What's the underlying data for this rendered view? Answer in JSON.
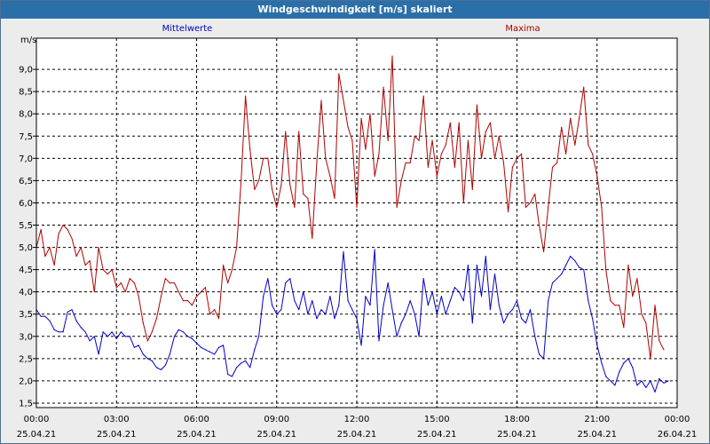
{
  "window": {
    "title": "Windgeschwindigkeit [m/s] skaliert"
  },
  "chart_data": {
    "type": "line",
    "title": "Windgeschwindigkeit [m/s] skaliert",
    "ylabel": "m/s",
    "ylim": [
      1.4,
      9.7
    ],
    "xlim_hours": [
      0,
      24
    ],
    "grid": true,
    "yticks": [
      {
        "value": 1.5,
        "label": "1,5"
      },
      {
        "value": 2.0,
        "label": "2,0"
      },
      {
        "value": 2.5,
        "label": "2,5"
      },
      {
        "value": 3.0,
        "label": "3,0"
      },
      {
        "value": 3.5,
        "label": "3,5"
      },
      {
        "value": 4.0,
        "label": "4,0"
      },
      {
        "value": 4.5,
        "label": "4,5"
      },
      {
        "value": 5.0,
        "label": "5,0"
      },
      {
        "value": 5.5,
        "label": "5,5"
      },
      {
        "value": 6.0,
        "label": "6,0"
      },
      {
        "value": 6.5,
        "label": "6,5"
      },
      {
        "value": 7.0,
        "label": "7,0"
      },
      {
        "value": 7.5,
        "label": "7,5"
      },
      {
        "value": 8.0,
        "label": "8,0"
      },
      {
        "value": 8.5,
        "label": "8,5"
      },
      {
        "value": 9.0,
        "label": "9,0"
      }
    ],
    "xticks": [
      {
        "hour": 0,
        "time": "00:00",
        "date": "25.04.21"
      },
      {
        "hour": 3,
        "time": "03:00",
        "date": "25.04.21"
      },
      {
        "hour": 6,
        "time": "06:00",
        "date": "25.04.21"
      },
      {
        "hour": 9,
        "time": "09:00",
        "date": "25.04.21"
      },
      {
        "hour": 12,
        "time": "12:00",
        "date": "25.04.21"
      },
      {
        "hour": 15,
        "time": "15:00",
        "date": "25.04.21"
      },
      {
        "hour": 18,
        "time": "18:00",
        "date": "25.04.21"
      },
      {
        "hour": 21,
        "time": "21:00",
        "date": "25.04.21"
      },
      {
        "hour": 24,
        "time": "00:00",
        "date": "26.04.21"
      }
    ],
    "series": [
      {
        "name": "Mittelwerte",
        "color": "#0000c8",
        "points": [
          [
            0.0,
            3.6
          ],
          [
            0.17,
            3.45
          ],
          [
            0.33,
            3.45
          ],
          [
            0.5,
            3.35
          ],
          [
            0.67,
            3.15
          ],
          [
            0.83,
            3.1
          ],
          [
            1.0,
            3.1
          ],
          [
            1.17,
            3.55
          ],
          [
            1.33,
            3.6
          ],
          [
            1.5,
            3.35
          ],
          [
            1.67,
            3.2
          ],
          [
            1.83,
            3.1
          ],
          [
            2.0,
            2.9
          ],
          [
            2.17,
            3.0
          ],
          [
            2.33,
            2.6
          ],
          [
            2.5,
            3.1
          ],
          [
            2.67,
            3.0
          ],
          [
            2.83,
            3.1
          ],
          [
            3.0,
            2.95
          ],
          [
            3.17,
            3.1
          ],
          [
            3.33,
            3.0
          ],
          [
            3.5,
            3.0
          ],
          [
            3.67,
            2.75
          ],
          [
            3.83,
            2.8
          ],
          [
            4.0,
            2.6
          ],
          [
            4.17,
            2.5
          ],
          [
            4.33,
            2.45
          ],
          [
            4.5,
            2.3
          ],
          [
            4.67,
            2.25
          ],
          [
            4.83,
            2.35
          ],
          [
            5.0,
            2.6
          ],
          [
            5.17,
            3.0
          ],
          [
            5.33,
            3.15
          ],
          [
            5.5,
            3.1
          ],
          [
            5.67,
            3.0
          ],
          [
            5.83,
            2.95
          ],
          [
            6.0,
            2.85
          ],
          [
            6.17,
            2.75
          ],
          [
            6.33,
            2.7
          ],
          [
            6.5,
            2.65
          ],
          [
            6.67,
            2.6
          ],
          [
            6.83,
            2.75
          ],
          [
            7.0,
            2.8
          ],
          [
            7.17,
            2.15
          ],
          [
            7.33,
            2.1
          ],
          [
            7.5,
            2.3
          ],
          [
            7.67,
            2.4
          ],
          [
            7.83,
            2.45
          ],
          [
            8.0,
            2.3
          ],
          [
            8.17,
            2.7
          ],
          [
            8.33,
            3.0
          ],
          [
            8.5,
            3.9
          ],
          [
            8.67,
            4.3
          ],
          [
            8.83,
            3.7
          ],
          [
            9.0,
            3.5
          ],
          [
            9.17,
            3.6
          ],
          [
            9.33,
            4.2
          ],
          [
            9.5,
            4.3
          ],
          [
            9.67,
            3.8
          ],
          [
            9.83,
            3.6
          ],
          [
            10.0,
            4.0
          ],
          [
            10.17,
            3.5
          ],
          [
            10.33,
            3.8
          ],
          [
            10.5,
            3.4
          ],
          [
            10.67,
            3.6
          ],
          [
            10.83,
            3.5
          ],
          [
            11.0,
            3.9
          ],
          [
            11.17,
            3.4
          ],
          [
            11.33,
            3.7
          ],
          [
            11.5,
            4.9
          ],
          [
            11.67,
            3.8
          ],
          [
            11.83,
            3.6
          ],
          [
            12.0,
            3.4
          ],
          [
            12.17,
            2.8
          ],
          [
            12.33,
            3.9
          ],
          [
            12.5,
            3.7
          ],
          [
            12.67,
            4.95
          ],
          [
            12.83,
            2.9
          ],
          [
            13.0,
            3.7
          ],
          [
            13.17,
            4.2
          ],
          [
            13.33,
            3.6
          ],
          [
            13.5,
            3.0
          ],
          [
            13.67,
            3.3
          ],
          [
            13.83,
            3.5
          ],
          [
            14.0,
            3.8
          ],
          [
            14.17,
            3.5
          ],
          [
            14.33,
            3.0
          ],
          [
            14.5,
            4.3
          ],
          [
            14.67,
            3.7
          ],
          [
            14.83,
            4.0
          ],
          [
            15.0,
            3.5
          ],
          [
            15.17,
            3.9
          ],
          [
            15.33,
            3.5
          ],
          [
            15.5,
            3.8
          ],
          [
            15.67,
            4.1
          ],
          [
            15.83,
            4.0
          ],
          [
            16.0,
            3.8
          ],
          [
            16.17,
            4.6
          ],
          [
            16.33,
            3.3
          ],
          [
            16.5,
            4.6
          ],
          [
            16.67,
            3.9
          ],
          [
            16.83,
            4.8
          ],
          [
            17.0,
            3.6
          ],
          [
            17.17,
            4.4
          ],
          [
            17.33,
            3.7
          ],
          [
            17.5,
            3.3
          ],
          [
            17.67,
            3.5
          ],
          [
            17.83,
            3.6
          ],
          [
            18.0,
            3.8
          ],
          [
            18.17,
            3.4
          ],
          [
            18.33,
            3.3
          ],
          [
            18.5,
            3.6
          ],
          [
            18.67,
            3.0
          ],
          [
            18.83,
            2.6
          ],
          [
            19.0,
            2.5
          ],
          [
            19.17,
            3.8
          ],
          [
            19.33,
            4.2
          ],
          [
            19.5,
            4.3
          ],
          [
            19.67,
            4.4
          ],
          [
            19.83,
            4.6
          ],
          [
            20.0,
            4.8
          ],
          [
            20.17,
            4.7
          ],
          [
            20.33,
            4.55
          ],
          [
            20.5,
            4.5
          ],
          [
            20.67,
            3.8
          ],
          [
            20.83,
            3.4
          ],
          [
            21.0,
            2.8
          ],
          [
            21.17,
            2.4
          ],
          [
            21.33,
            2.1
          ],
          [
            21.5,
            2.0
          ],
          [
            21.67,
            1.9
          ],
          [
            21.83,
            2.2
          ],
          [
            22.0,
            2.4
          ],
          [
            22.17,
            2.5
          ],
          [
            22.33,
            2.3
          ],
          [
            22.5,
            1.9
          ],
          [
            22.67,
            2.0
          ],
          [
            22.83,
            1.85
          ],
          [
            23.0,
            2.0
          ],
          [
            23.17,
            1.75
          ],
          [
            23.33,
            2.05
          ],
          [
            23.5,
            1.95
          ],
          [
            23.67,
            2.0
          ]
        ]
      },
      {
        "name": "Maxima",
        "color": "#b00000",
        "points": [
          [
            0.0,
            5.0
          ],
          [
            0.17,
            5.4
          ],
          [
            0.33,
            4.8
          ],
          [
            0.5,
            5.0
          ],
          [
            0.67,
            4.6
          ],
          [
            0.83,
            5.3
          ],
          [
            1.0,
            5.5
          ],
          [
            1.17,
            5.4
          ],
          [
            1.33,
            5.2
          ],
          [
            1.5,
            4.8
          ],
          [
            1.67,
            5.0
          ],
          [
            1.83,
            4.6
          ],
          [
            2.0,
            4.7
          ],
          [
            2.17,
            4.0
          ],
          [
            2.33,
            5.0
          ],
          [
            2.5,
            4.5
          ],
          [
            2.67,
            4.4
          ],
          [
            2.83,
            4.5
          ],
          [
            3.0,
            4.1
          ],
          [
            3.17,
            4.2
          ],
          [
            3.33,
            4.0
          ],
          [
            3.5,
            4.3
          ],
          [
            3.67,
            4.2
          ],
          [
            3.83,
            3.9
          ],
          [
            4.0,
            3.3
          ],
          [
            4.17,
            2.9
          ],
          [
            4.33,
            3.1
          ],
          [
            4.5,
            3.4
          ],
          [
            4.67,
            3.9
          ],
          [
            4.83,
            4.3
          ],
          [
            5.0,
            4.2
          ],
          [
            5.17,
            4.2
          ],
          [
            5.33,
            4.0
          ],
          [
            5.5,
            3.8
          ],
          [
            5.67,
            3.8
          ],
          [
            5.83,
            3.7
          ],
          [
            6.0,
            3.9
          ],
          [
            6.17,
            4.0
          ],
          [
            6.33,
            4.1
          ],
          [
            6.5,
            3.5
          ],
          [
            6.67,
            3.6
          ],
          [
            6.83,
            3.4
          ],
          [
            7.0,
            4.6
          ],
          [
            7.17,
            4.2
          ],
          [
            7.33,
            4.5
          ],
          [
            7.5,
            5.0
          ],
          [
            7.67,
            6.5
          ],
          [
            7.83,
            8.4
          ],
          [
            8.0,
            7.2
          ],
          [
            8.17,
            6.3
          ],
          [
            8.33,
            6.5
          ],
          [
            8.5,
            7.0
          ],
          [
            8.67,
            7.0
          ],
          [
            8.83,
            6.3
          ],
          [
            9.0,
            5.9
          ],
          [
            9.17,
            6.4
          ],
          [
            9.33,
            7.6
          ],
          [
            9.5,
            6.4
          ],
          [
            9.67,
            5.9
          ],
          [
            9.83,
            7.6
          ],
          [
            10.0,
            6.2
          ],
          [
            10.17,
            6.1
          ],
          [
            10.33,
            5.2
          ],
          [
            10.5,
            6.9
          ],
          [
            10.67,
            8.3
          ],
          [
            10.83,
            7.0
          ],
          [
            11.0,
            6.6
          ],
          [
            11.17,
            6.1
          ],
          [
            11.33,
            8.9
          ],
          [
            11.5,
            8.3
          ],
          [
            11.67,
            7.7
          ],
          [
            11.83,
            7.4
          ],
          [
            12.0,
            5.9
          ],
          [
            12.17,
            7.9
          ],
          [
            12.33,
            7.2
          ],
          [
            12.5,
            8.0
          ],
          [
            12.67,
            6.6
          ],
          [
            12.83,
            7.1
          ],
          [
            13.0,
            8.6
          ],
          [
            13.17,
            7.4
          ],
          [
            13.33,
            9.3
          ],
          [
            13.5,
            5.9
          ],
          [
            13.67,
            6.5
          ],
          [
            13.83,
            6.9
          ],
          [
            14.0,
            6.9
          ],
          [
            14.17,
            7.5
          ],
          [
            14.33,
            7.4
          ],
          [
            14.5,
            8.4
          ],
          [
            14.67,
            6.8
          ],
          [
            14.83,
            7.4
          ],
          [
            15.0,
            6.6
          ],
          [
            15.17,
            7.1
          ],
          [
            15.33,
            7.3
          ],
          [
            15.5,
            7.8
          ],
          [
            15.67,
            6.8
          ],
          [
            15.83,
            7.8
          ],
          [
            16.0,
            6.0
          ],
          [
            16.17,
            7.4
          ],
          [
            16.33,
            6.3
          ],
          [
            16.5,
            8.2
          ],
          [
            16.67,
            7.0
          ],
          [
            16.83,
            7.6
          ],
          [
            17.0,
            7.8
          ],
          [
            17.17,
            7.0
          ],
          [
            17.33,
            7.5
          ],
          [
            17.5,
            6.9
          ],
          [
            17.67,
            5.8
          ],
          [
            17.83,
            6.8
          ],
          [
            18.0,
            7.0
          ],
          [
            18.17,
            7.1
          ],
          [
            18.33,
            5.9
          ],
          [
            18.5,
            6.0
          ],
          [
            18.67,
            6.2
          ],
          [
            18.83,
            5.5
          ],
          [
            19.0,
            4.9
          ],
          [
            19.17,
            5.9
          ],
          [
            19.33,
            6.8
          ],
          [
            19.5,
            6.9
          ],
          [
            19.67,
            7.7
          ],
          [
            19.83,
            7.1
          ],
          [
            20.0,
            7.9
          ],
          [
            20.17,
            7.3
          ],
          [
            20.33,
            7.9
          ],
          [
            20.5,
            8.6
          ],
          [
            20.67,
            7.3
          ],
          [
            20.83,
            7.1
          ],
          [
            21.0,
            6.6
          ],
          [
            21.17,
            5.9
          ],
          [
            21.33,
            4.5
          ],
          [
            21.5,
            3.8
          ],
          [
            21.67,
            3.7
          ],
          [
            21.83,
            3.7
          ],
          [
            22.0,
            3.2
          ],
          [
            22.17,
            4.6
          ],
          [
            22.33,
            3.9
          ],
          [
            22.5,
            4.3
          ],
          [
            22.67,
            3.5
          ],
          [
            22.83,
            3.3
          ],
          [
            23.0,
            2.5
          ],
          [
            23.17,
            3.7
          ],
          [
            23.33,
            2.9
          ],
          [
            23.5,
            2.7
          ]
        ]
      }
    ]
  }
}
